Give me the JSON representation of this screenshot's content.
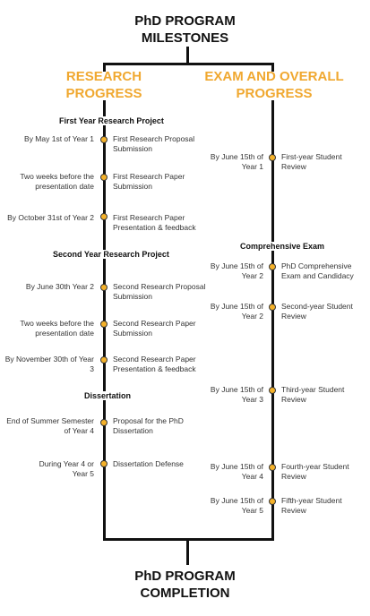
{
  "title": {
    "line1": "PhD PROGRAM",
    "line2": "MILESTONES"
  },
  "footer": {
    "line1": "PhD PROGRAM",
    "line2": "COMPLETION"
  },
  "research": {
    "header": {
      "line1": "RESEARCH",
      "line2": "PROGRESS"
    },
    "sections": [
      {
        "title": "First Year Research Project"
      },
      {
        "title": "Second Year Research Project"
      },
      {
        "title": "Dissertation"
      }
    ],
    "milestones": [
      {
        "when": "By May 1st of Year 1",
        "what": "First Research Proposal Submission"
      },
      {
        "when": "Two weeks before the presentation date",
        "what": "First Research Paper Submission"
      },
      {
        "when": "By October 31st of Year 2",
        "what": "First Research Paper Presentation & feedback"
      },
      {
        "when": "By June 30th Year 2",
        "what": "Second Research Proposal Submission"
      },
      {
        "when": "Two weeks before the presentation date",
        "what": "Second Research Paper Submission"
      },
      {
        "when": "By November 30th of Year 3",
        "what": "Second Research Paper Presentation & feedback"
      },
      {
        "when": "End of Summer Semester of Year 4",
        "what": "Proposal for the PhD Dissertation"
      },
      {
        "when": "During Year 4 or Year 5",
        "what": "Dissertation Defense"
      }
    ]
  },
  "exam": {
    "header": {
      "line1": "EXAM AND OVERALL",
      "line2": "PROGRESS"
    },
    "sections": [
      {
        "title": "Comprehensive Exam"
      }
    ],
    "milestones": [
      {
        "when": "By June 15th of Year 1",
        "what": "First-year Student Review"
      },
      {
        "when": "By June 15th of Year 2",
        "what": "PhD Comprehensive Exam and Candidacy"
      },
      {
        "when": "By June 15th of Year 2",
        "what": "Second-year Student Review"
      },
      {
        "when": "By June 15th of Year 3",
        "what": "Third-year Student Review"
      },
      {
        "when": "By June 15th of Year 4",
        "what": "Fourth-year Student Review"
      },
      {
        "when": "By June 15th of Year 5",
        "what": "Fifth-year Student Review"
      }
    ]
  },
  "colors": {
    "accent": "#f0a830",
    "dot": "#f5b22a",
    "line": "#111111"
  }
}
